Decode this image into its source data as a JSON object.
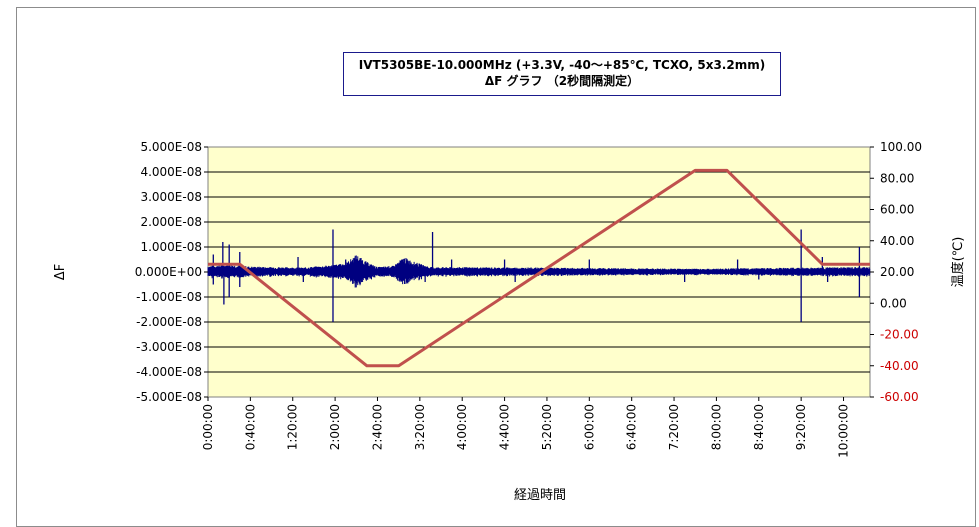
{
  "chart_data": {
    "type": "line",
    "title": "IVT5305BE-10.000MHz (+3.3V, -40～+85℃, TCXO, 5x3.2mm)",
    "subtitle": "ΔF グラフ （2秒間隔測定）",
    "xlabel": "経過時間",
    "ylabel": "ΔF",
    "y2label": "温度(℃)",
    "x_ticks": [
      "0:00:00",
      "0:40:00",
      "1:20:00",
      "2:00:00",
      "2:40:00",
      "3:20:00",
      "4:00:00",
      "4:40:00",
      "5:20:00",
      "6:00:00",
      "6:40:00",
      "7:20:00",
      "8:00:00",
      "8:40:00",
      "9:20:00",
      "10:00:00"
    ],
    "x_range_minutes": [
      0,
      625
    ],
    "y_ticks": [
      "5.000E-08",
      "4.000E-08",
      "3.000E-08",
      "2.000E-08",
      "1.000E-08",
      "0.000E+00",
      "-1.000E-08",
      "-2.000E-08",
      "-3.000E-08",
      "-4.000E-08",
      "-5.000E-08"
    ],
    "ylim": [
      -5e-08,
      5e-08
    ],
    "y2_ticks": [
      {
        "label": "100.00",
        "color": "#000000"
      },
      {
        "label": "80.00",
        "color": "#000000"
      },
      {
        "label": "60.00",
        "color": "#000000"
      },
      {
        "label": "40.00",
        "color": "#000000"
      },
      {
        "label": "20.00",
        "color": "#000000"
      },
      {
        "label": "0.00",
        "color": "#000000"
      },
      {
        "label": "-20.00",
        "color": "#cc0000"
      },
      {
        "label": "-40.00",
        "color": "#cc0000"
      },
      {
        "label": "-60.00",
        "color": "#cc0000"
      }
    ],
    "y2lim": [
      -60,
      100
    ],
    "grid": true,
    "plot_background": "#ffffcc",
    "series": [
      {
        "axis": "right",
        "color": "#c0504d",
        "points": [
          [
            0,
            25
          ],
          [
            30,
            25
          ],
          [
            150,
            -40
          ],
          [
            180,
            -40
          ],
          [
            460,
            85
          ],
          [
            490,
            85
          ],
          [
            580,
            25
          ],
          [
            625,
            25
          ]
        ]
      },
      {
        "axis": "left",
        "color": "#000080",
        "envelope": [
          [
            0,
            2.5e-09
          ],
          [
            20,
            3e-09
          ],
          [
            40,
            2.2e-09
          ],
          [
            90,
            1.8e-09
          ],
          [
            110,
            2.5e-09
          ],
          [
            130,
            3.5e-09
          ],
          [
            140,
            7e-09
          ],
          [
            150,
            4e-09
          ],
          [
            160,
            2e-09
          ],
          [
            175,
            2.5e-09
          ],
          [
            185,
            6e-09
          ],
          [
            195,
            4e-09
          ],
          [
            210,
            2e-09
          ],
          [
            300,
            1.8e-09
          ],
          [
            400,
            1.5e-09
          ],
          [
            470,
            1.3e-09
          ],
          [
            500,
            1.5e-09
          ],
          [
            570,
            1.8e-09
          ],
          [
            625,
            2e-09
          ]
        ],
        "spikes": [
          [
            5,
            7e-09
          ],
          [
            5,
            -5e-09
          ],
          [
            14,
            1.2e-08
          ],
          [
            15,
            -1.3e-08
          ],
          [
            20,
            1.1e-08
          ],
          [
            20,
            -1e-08
          ],
          [
            30,
            8e-09
          ],
          [
            30,
            -6e-09
          ],
          [
            85,
            6e-09
          ],
          [
            90,
            -4e-09
          ],
          [
            118,
            1.7e-08
          ],
          [
            118,
            -2e-08
          ],
          [
            130,
            5e-09
          ],
          [
            205,
            -4e-09
          ],
          [
            212,
            1.6e-08
          ],
          [
            230,
            5e-09
          ],
          [
            280,
            5e-09
          ],
          [
            290,
            -4e-09
          ],
          [
            360,
            5e-09
          ],
          [
            450,
            -4e-09
          ],
          [
            500,
            5e-09
          ],
          [
            520,
            -3e-09
          ],
          [
            560,
            1.7e-08
          ],
          [
            560,
            -2e-08
          ],
          [
            580,
            6e-09
          ],
          [
            585,
            -4e-09
          ],
          [
            615,
            1e-08
          ],
          [
            615,
            -1e-08
          ]
        ]
      }
    ]
  }
}
